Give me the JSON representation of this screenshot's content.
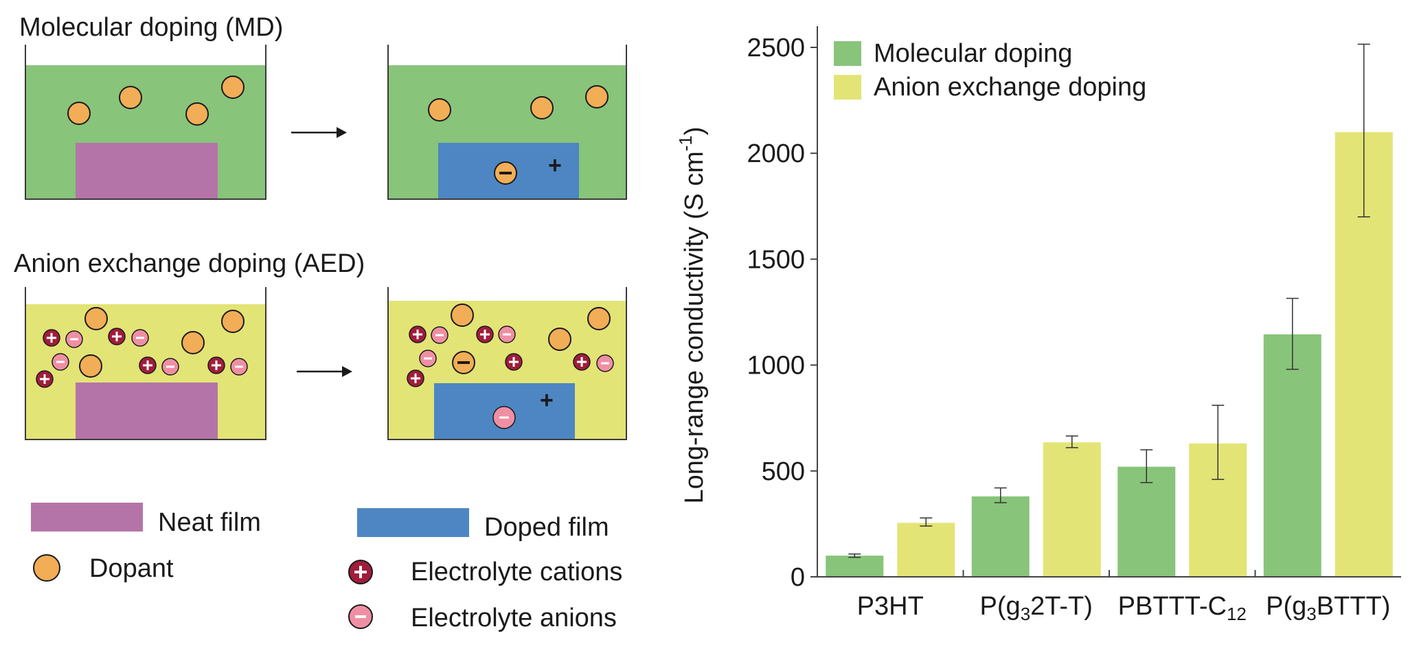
{
  "schematic": {
    "md_title": "Molecular doping (MD)",
    "aed_title": "Anion exchange doping (AED)",
    "anion_sign": "−",
    "cation_sign": "+",
    "hole_sign": "+",
    "colors": {
      "md_solution": "#88c47a",
      "aed_solution": "#e3e476",
      "neat_film": "#b574a8",
      "doped_film": "#4d86c2",
      "dopant": "#f2ad57",
      "cation": "#a01d3b",
      "anion": "#ef8fa4"
    },
    "legend": {
      "neat_film": "Neat film",
      "doped_film": "Doped film",
      "dopant": "Dopant",
      "cations": "Electrolyte cations",
      "anions": "Electrolyte anions"
    }
  },
  "chart_data": {
    "type": "bar",
    "ylabel": "Long-range conductivity (S cm",
    "ylabel_sup": "-1",
    "ylabel_close": ")",
    "ylim": [
      0,
      2500
    ],
    "yticks": [
      0,
      500,
      1000,
      1500,
      2000,
      2500
    ],
    "legend_position": "top-left",
    "categories": [
      {
        "main": "P3HT",
        "sub": "",
        "tail": ""
      },
      {
        "main": "P(g",
        "sub": "3",
        "tail": "2T-T)"
      },
      {
        "main": "PBTTT-C",
        "sub": "12",
        "tail": ""
      },
      {
        "main": "P(g",
        "sub": "3",
        "tail": "BTTT)"
      }
    ],
    "series": [
      {
        "name": "Molecular doping",
        "color": "#88c47a",
        "values": [
          100,
          380,
          520,
          1145
        ],
        "err_low": [
          92,
          350,
          445,
          980
        ],
        "err_high": [
          108,
          420,
          600,
          1315
        ]
      },
      {
        "name": "Anion exchange doping",
        "color": "#e3e476",
        "values": [
          255,
          635,
          630,
          2100
        ],
        "err_low": [
          240,
          610,
          460,
          1700
        ],
        "err_high": [
          278,
          665,
          810,
          2515
        ]
      }
    ]
  }
}
